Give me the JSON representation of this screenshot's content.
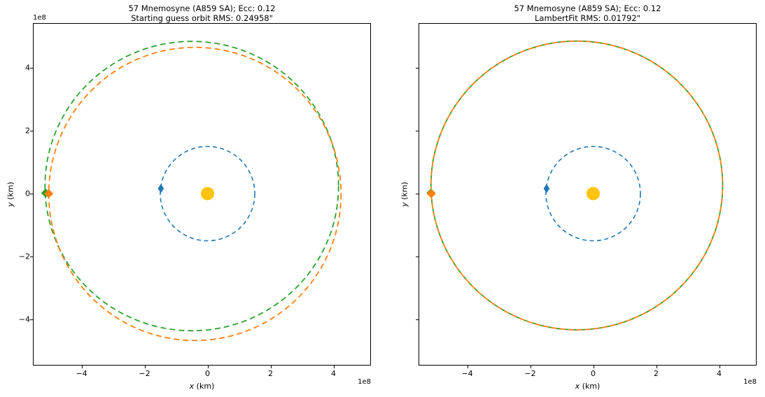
{
  "figure": {
    "background": "#ffffff",
    "units_note": "all orbit coordinates in units of 1e8 km as shown by axis offset text"
  },
  "colors": {
    "sun": "#ffc40d",
    "earth_orbit_blue": "#1f77b4",
    "guess_orbit_green": "#2ca02c",
    "fit_orbit_orange": "#ff7f0e",
    "axes_line": "#000000",
    "text": "#000000"
  },
  "chart_data": [
    {
      "type": "line",
      "panel": "left",
      "title": "57 Mnemosyne (A859 SA); Ecc: 0.12",
      "subtitle": "Starting guess orbit RMS: 0.24958\"",
      "xlabel": {
        "var": "x",
        "unit": "(km)"
      },
      "ylabel": {
        "var": "y",
        "unit": "(km)"
      },
      "x_offset_text": "1e8",
      "y_offset_text": "1e8",
      "xticks": [
        -4,
        -2,
        0,
        2,
        4
      ],
      "yticks": [
        4,
        2,
        0,
        -2,
        -4
      ],
      "xlim": [
        -5.55,
        5.2
      ],
      "ylim": [
        -5.45,
        5.45
      ],
      "grid": false,
      "legend": "none",
      "y_tick_labels_visible": true,
      "series": [
        {
          "name": "earth-orbit",
          "shape": "ellipse",
          "cx": 0,
          "cy": 0,
          "rx": 1.5,
          "ry": 1.5,
          "color": "#1f77b4",
          "style": "dashed",
          "dash": "6 4.5",
          "width": 1.6
        },
        {
          "name": "guess-orbit-green",
          "shape": "ellipse",
          "cx": -0.5,
          "cy": 0.24,
          "rx": 4.66,
          "ry": 4.6,
          "color": "#2ca02c",
          "style": "dashed",
          "dash": "8 5",
          "width": 1.8
        },
        {
          "name": "observed-orbit-orange",
          "shape": "ellipse",
          "cx": -0.4,
          "cy": -0.01,
          "rx": 4.64,
          "ry": 4.66,
          "color": "#ff7f0e",
          "style": "dashed",
          "dash": "8 5",
          "width": 1.8
        }
      ],
      "markers": [
        {
          "name": "sun",
          "x": 0,
          "y": 0,
          "shape": "dot",
          "size": 19,
          "color": "#ffc40d"
        },
        {
          "name": "earth",
          "x": -1.48,
          "y": 0.16,
          "shape": "thin-diamond",
          "size": 13,
          "color": "#1f77b4"
        },
        {
          "name": "asteroid-guess-green",
          "x": -5.14,
          "y": 0.02,
          "shape": "diamond",
          "size": 13,
          "color": "#2ca02c"
        },
        {
          "name": "asteroid-observed-orange",
          "x": -5.04,
          "y": 0.0,
          "shape": "diamond",
          "size": 13,
          "color": "#ff7f0e"
        }
      ]
    },
    {
      "type": "line",
      "panel": "right",
      "title": "57 Mnemosyne (A859 SA); Ecc: 0.12",
      "subtitle": "LambertFit RMS: 0.01792\"",
      "xlabel": {
        "var": "x",
        "unit": "(km)"
      },
      "ylabel": {
        "var": "y",
        "unit": "(km)"
      },
      "x_offset_text": "1e8",
      "xticks": [
        -4,
        -2,
        0,
        2,
        4
      ],
      "yticks": [
        4,
        2,
        0,
        -2,
        -4
      ],
      "xlim": [
        -5.55,
        5.2
      ],
      "ylim": [
        -5.45,
        5.45
      ],
      "grid": false,
      "legend": "none",
      "y_tick_labels_visible": false,
      "series": [
        {
          "name": "earth-orbit",
          "shape": "ellipse",
          "cx": 0,
          "cy": 0,
          "rx": 1.5,
          "ry": 1.5,
          "color": "#1f77b4",
          "style": "dashed",
          "dash": "6 4.5",
          "width": 1.6
        },
        {
          "name": "fit-orbit-green",
          "shape": "ellipse",
          "cx": -0.52,
          "cy": 0.26,
          "rx": 4.63,
          "ry": 4.59,
          "color": "#2ca02c",
          "style": "dashed",
          "dash": "7 5",
          "width": 1.8
        },
        {
          "name": "fit-orbit-orange",
          "shape": "ellipse",
          "cx": -0.52,
          "cy": 0.26,
          "rx": 4.63,
          "ry": 4.59,
          "color": "#ff7f0e",
          "style": "dashed",
          "dash": "8 4",
          "dash_offset": 6,
          "width": 1.8
        }
      ],
      "markers": [
        {
          "name": "sun",
          "x": 0,
          "y": 0,
          "shape": "dot",
          "size": 19,
          "color": "#ffc40d"
        },
        {
          "name": "earth",
          "x": -1.48,
          "y": 0.16,
          "shape": "thin-diamond",
          "size": 13,
          "color": "#1f77b4"
        },
        {
          "name": "asteroid-fit-green",
          "x": -5.15,
          "y": 0.02,
          "shape": "diamond",
          "size": 13,
          "color": "#2ca02c"
        },
        {
          "name": "asteroid-fit-orange",
          "x": -5.14,
          "y": 0.0,
          "shape": "diamond",
          "size": 13,
          "color": "#ff7f0e"
        }
      ]
    }
  ]
}
